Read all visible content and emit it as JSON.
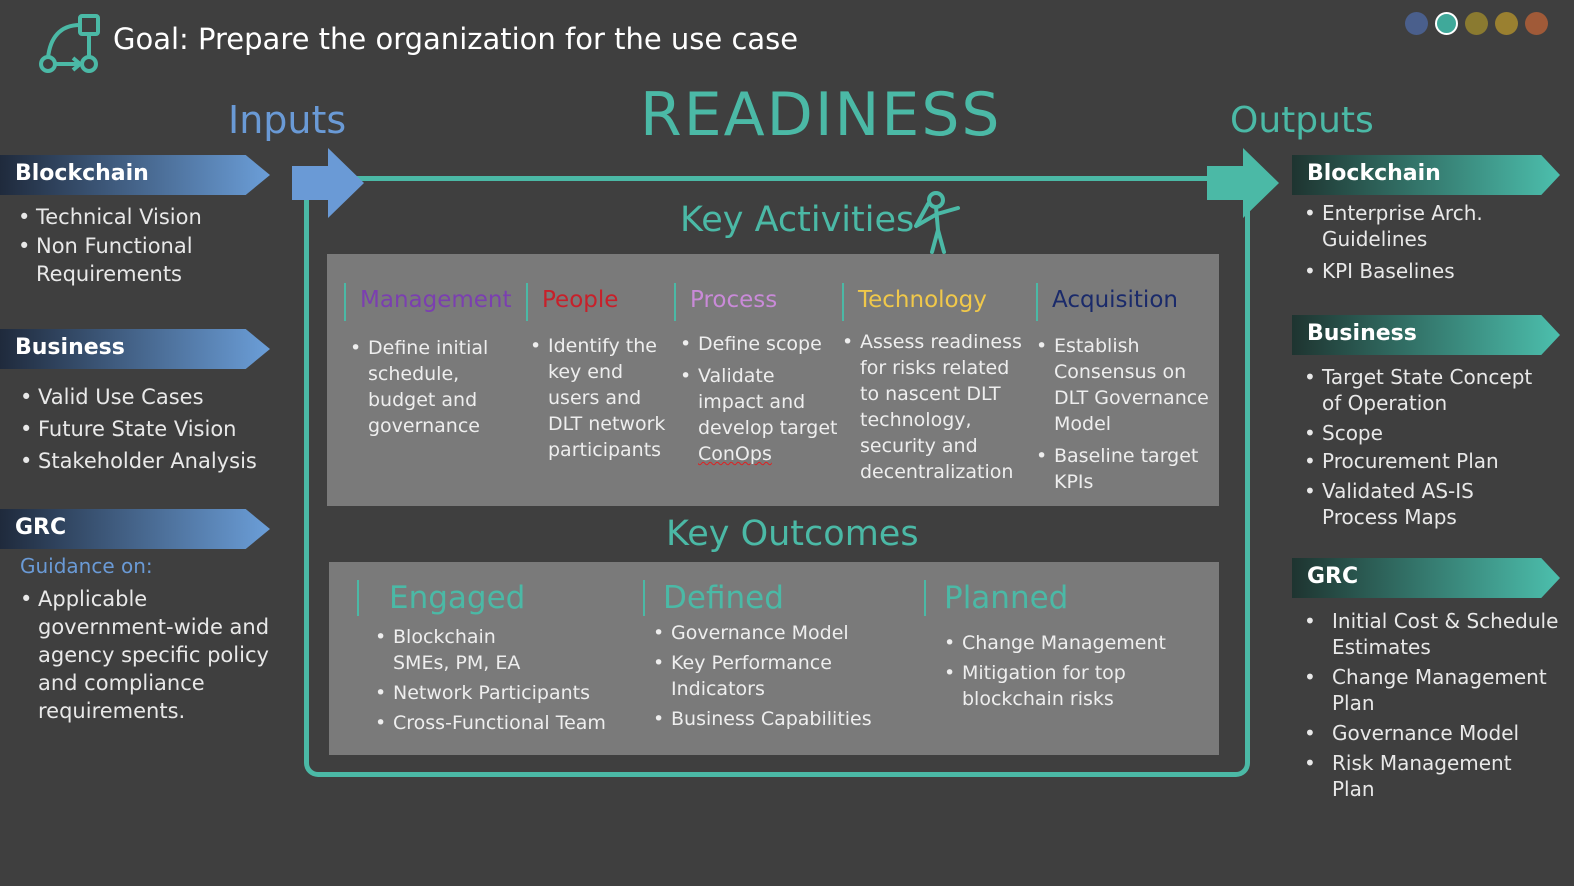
{
  "header": {
    "goal": "Goal: Prepare the organization for the use case",
    "colors": {
      "teal": "#4bb9a6",
      "blue": "#6a9ad6",
      "background": "#3f3f3f"
    },
    "progress_dots": [
      {
        "color": "#4a5f8c",
        "active": false
      },
      {
        "color": "#3fa99a",
        "active": true
      },
      {
        "color": "#8a7a30",
        "active": false
      },
      {
        "color": "#9a8030",
        "active": false
      },
      {
        "color": "#a05a38",
        "active": false
      }
    ]
  },
  "titles": {
    "inputs": "Inputs",
    "readiness": "READINESS",
    "outputs": "Outputs",
    "key_activities": "Key Activities",
    "key_outcomes": "Key Outcomes"
  },
  "inputs": {
    "blockchain": {
      "label": "Blockchain",
      "items": [
        "Technical Vision",
        "Non Functional Requirements"
      ]
    },
    "business": {
      "label": "Business",
      "items": [
        "Valid Use Cases",
        "Future State Vision",
        "Stakeholder Analysis"
      ]
    },
    "grc": {
      "label": "GRC",
      "guidance": "Guidance on:",
      "items": [
        "Applicable government-wide and agency specific policy and compliance requirements."
      ]
    }
  },
  "activities": [
    {
      "label": "Management",
      "color": "#7b3fb0",
      "items": [
        "Define initial schedule, budget and governance"
      ]
    },
    {
      "label": "People",
      "color": "#c8202a",
      "items": [
        "Identify the key end users and DLT network participants"
      ]
    },
    {
      "label": "Process",
      "color": "#c98ad8",
      "items": [
        "Define scope",
        "Validate impact and develop target ConOps"
      ]
    },
    {
      "label": "Technology",
      "color": "#f0c84a",
      "items": [
        "Assess readiness for risks related to nascent DLT technology, security and decentralization"
      ]
    },
    {
      "label": "Acquisition",
      "color": "#1a2a6a",
      "items": [
        "Establish Consensus on DLT Governance Model",
        "Baseline target KPIs"
      ]
    }
  ],
  "outcomes": [
    {
      "label": "Engaged",
      "items": [
        "Blockchain SMEs, PM, EA",
        "Network Participants",
        "Cross-Functional Team"
      ]
    },
    {
      "label": "Defined",
      "items": [
        "Governance Model",
        "Key Performance Indicators",
        "Business Capabilities"
      ]
    },
    {
      "label": "Planned",
      "items": [
        "Change Management",
        "Mitigation for top blockchain risks"
      ]
    }
  ],
  "outputs": {
    "blockchain": {
      "label": "Blockchain",
      "items": [
        "Enterprise Arch. Guidelines",
        "KPI Baselines"
      ]
    },
    "business": {
      "label": "Business",
      "items": [
        "Target State Concept of Operation",
        "Scope",
        "Procurement Plan",
        "Validated AS-IS Process Maps"
      ]
    },
    "grc": {
      "label": "GRC",
      "items": [
        "Initial Cost & Schedule Estimates",
        "Change Management Plan",
        "Governance Model",
        "Risk Management Plan"
      ]
    }
  }
}
